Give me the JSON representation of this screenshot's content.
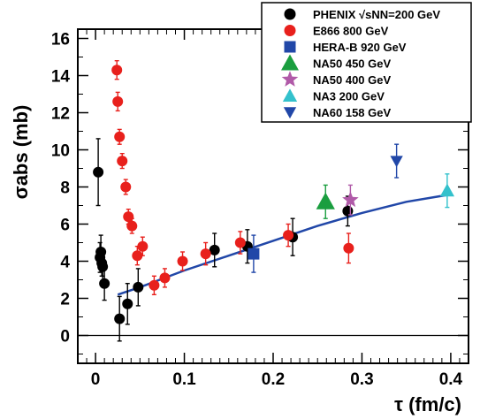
{
  "chart_data": {
    "type": "scatter",
    "xlabel": "τ (fm/c)",
    "ylabel": "σabs (mb)",
    "xlim": [
      -0.02,
      0.42
    ],
    "ylim": [
      -1.5,
      16.5
    ],
    "xticks": [
      "0",
      "0.1",
      "0.2",
      "0.3",
      "0.4"
    ],
    "yticks": [
      "0",
      "2",
      "4",
      "6",
      "8",
      "10",
      "12",
      "14",
      "16"
    ],
    "legend_position": "top-right",
    "series": [
      {
        "name": "PHENIX √sNN=200 GeV",
        "marker": "circle",
        "color": "#000000",
        "points": [
          {
            "x": 0.003,
            "y": 8.8,
            "err": 1.8
          },
          {
            "x": 0.005,
            "y": 4.2,
            "err": 0.8
          },
          {
            "x": 0.006,
            "y": 4.5,
            "err": 0.9
          },
          {
            "x": 0.007,
            "y": 3.9,
            "err": 0.7
          },
          {
            "x": 0.008,
            "y": 3.7,
            "err": 0.8
          },
          {
            "x": 0.01,
            "y": 2.8,
            "err": 0.9
          },
          {
            "x": 0.027,
            "y": 0.9,
            "err": 1.2
          },
          {
            "x": 0.036,
            "y": 1.7,
            "err": 1.1
          },
          {
            "x": 0.048,
            "y": 2.6,
            "err": 1.0
          },
          {
            "x": 0.134,
            "y": 4.6,
            "err": 0.9
          },
          {
            "x": 0.171,
            "y": 4.8,
            "err": 0.9
          },
          {
            "x": 0.222,
            "y": 5.3,
            "err": 1.0
          },
          {
            "x": 0.284,
            "y": 6.7,
            "err": 0.8
          }
        ]
      },
      {
        "name": "E866 800 GeV",
        "marker": "circle",
        "color": "#e8201c",
        "points": [
          {
            "x": 0.024,
            "y": 14.3,
            "err": 0.5
          },
          {
            "x": 0.025,
            "y": 12.6,
            "err": 0.5
          },
          {
            "x": 0.027,
            "y": 10.7,
            "err": 0.4
          },
          {
            "x": 0.03,
            "y": 9.4,
            "err": 0.4
          },
          {
            "x": 0.034,
            "y": 8.0,
            "err": 0.4
          },
          {
            "x": 0.037,
            "y": 6.4,
            "err": 0.4
          },
          {
            "x": 0.041,
            "y": 5.9,
            "err": 0.4
          },
          {
            "x": 0.047,
            "y": 4.3,
            "err": 0.5
          },
          {
            "x": 0.053,
            "y": 4.8,
            "err": 0.5
          },
          {
            "x": 0.066,
            "y": 2.7,
            "err": 0.5
          },
          {
            "x": 0.078,
            "y": 3.1,
            "err": 0.5
          },
          {
            "x": 0.098,
            "y": 4.0,
            "err": 0.5
          },
          {
            "x": 0.124,
            "y": 4.4,
            "err": 0.6
          },
          {
            "x": 0.163,
            "y": 5.0,
            "err": 0.6
          },
          {
            "x": 0.217,
            "y": 5.4,
            "err": 0.6
          },
          {
            "x": 0.285,
            "y": 4.7,
            "err": 0.8
          }
        ]
      },
      {
        "name": "HERA-B 920 GeV",
        "marker": "square",
        "color": "#2147a8",
        "points": [
          {
            "x": 0.178,
            "y": 4.4,
            "err": 1.0
          }
        ]
      },
      {
        "name": "NA50 450 GeV",
        "marker": "triangle-up",
        "color": "#1a9e3f",
        "points": [
          {
            "x": 0.259,
            "y": 7.2,
            "err": 0.9
          }
        ]
      },
      {
        "name": "NA50 400 GeV",
        "marker": "star",
        "color": "#b05aa8",
        "points": [
          {
            "x": 0.287,
            "y": 7.3,
            "err": 0.8
          }
        ]
      },
      {
        "name": "NA3 200 GeV",
        "marker": "triangle-up",
        "color": "#33c1cc",
        "points": [
          {
            "x": 0.396,
            "y": 7.8,
            "err": 0.9
          }
        ]
      },
      {
        "name": "NA60 158 GeV",
        "marker": "triangle-down",
        "color": "#2147a8",
        "points": [
          {
            "x": 0.339,
            "y": 9.4,
            "err": 0.9
          }
        ]
      }
    ],
    "fit_curve": {
      "color": "#2147a8",
      "x": [
        0.025,
        0.05,
        0.1,
        0.15,
        0.2,
        0.25,
        0.3,
        0.35,
        0.4
      ],
      "y": [
        2.2,
        2.6,
        3.5,
        4.3,
        5.1,
        5.9,
        6.6,
        7.2,
        7.6
      ]
    }
  }
}
